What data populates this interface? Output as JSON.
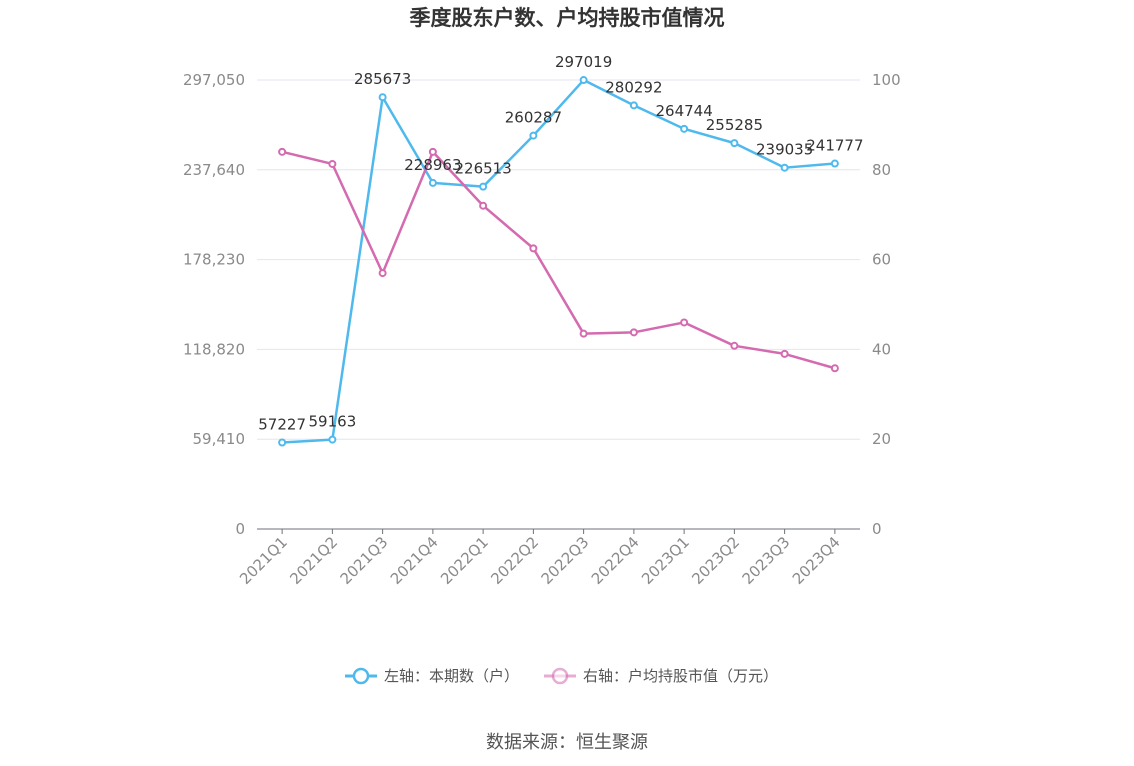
{
  "chart_data": {
    "type": "line",
    "title": "季度股东户数、户均持股市值情况",
    "categories": [
      "2021Q1",
      "2021Q2",
      "2021Q3",
      "2021Q4",
      "2022Q1",
      "2022Q2",
      "2022Q3",
      "2022Q4",
      "2023Q1",
      "2023Q2",
      "2023Q3",
      "2023Q4"
    ],
    "series": [
      {
        "name": "左轴：本期数（户）",
        "axis": "left",
        "color": "#4fb9ee",
        "values": [
          57227,
          59163,
          285673,
          228963,
          226513,
          260287,
          297019,
          280292,
          264744,
          255285,
          239035,
          241777
        ],
        "labels": [
          "57227",
          "59163",
          "285673",
          "228963",
          "226513",
          "260287",
          "297019",
          "280292",
          "264744",
          "255285",
          "239035",
          "241777"
        ]
      },
      {
        "name": "右轴：户均持股市值（万元）",
        "axis": "right",
        "color": "#d46aaf",
        "values": [
          84.0,
          81.3,
          57.0,
          84.0,
          72.0,
          62.5,
          43.5,
          43.8,
          46.0,
          40.8,
          39.0,
          35.8
        ]
      }
    ],
    "y_left": {
      "ticks": [
        0,
        59410,
        118820,
        178230,
        237640,
        297050
      ],
      "tick_labels": [
        "0",
        "59,410",
        "118,820",
        "178,230",
        "237,640",
        "297,050"
      ],
      "ylim": [
        0,
        297050
      ]
    },
    "y_right": {
      "ticks": [
        0,
        20,
        40,
        60,
        80,
        100
      ],
      "tick_labels": [
        "0",
        "20",
        "40",
        "60",
        "80",
        "100"
      ],
      "ylim": [
        0,
        100
      ]
    },
    "grid": true,
    "legend_position": "bottom-center",
    "source": "数据来源：恒生聚源"
  }
}
